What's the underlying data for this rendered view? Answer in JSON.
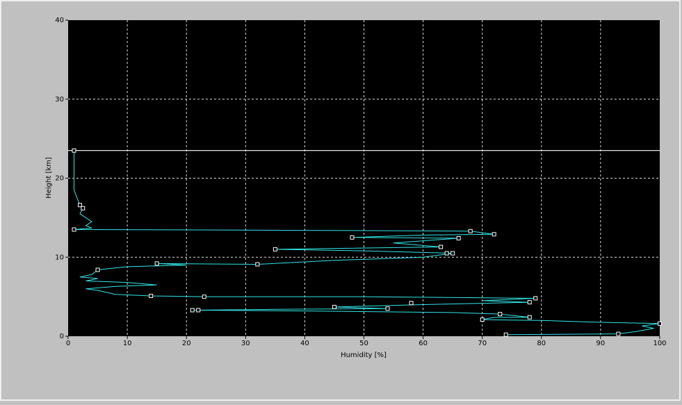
{
  "chart_data": {
    "type": "line",
    "x_label": "Humidity [%]",
    "y_label": "Height [km]",
    "xlim": [
      0,
      100
    ],
    "xticks": [
      0,
      10,
      20,
      30,
      40,
      50,
      60,
      70,
      80,
      90,
      100
    ],
    "ylim": [
      0,
      40
    ],
    "yticks": [
      0,
      10,
      20,
      30,
      40
    ],
    "grid": true,
    "reference_line": {
      "value": 23.5,
      "color": "#ffffff"
    },
    "series": [
      {
        "color": "#33e6e6",
        "x": [
          74,
          93,
          96,
          99,
          97,
          100,
          88,
          80,
          70,
          72,
          78,
          73,
          65,
          40,
          22,
          21,
          35,
          54,
          45,
          60,
          78,
          70,
          79,
          50,
          23,
          14,
          8,
          5,
          3,
          8,
          15,
          10,
          3,
          5,
          2,
          4,
          5,
          10,
          20,
          15,
          32,
          45,
          60,
          65,
          50,
          35,
          63,
          55,
          66,
          48,
          60,
          72,
          68,
          40,
          1,
          4,
          3,
          4,
          3,
          2,
          2.5,
          2,
          1.5,
          1,
          1,
          1
        ],
        "values": [
          0.2,
          0.3,
          0.6,
          1.0,
          1.3,
          1.6,
          1.8,
          2.0,
          2.1,
          2.4,
          2.4,
          2.8,
          3.0,
          3.2,
          3.3,
          3.3,
          3.4,
          3.5,
          3.7,
          4.0,
          4.3,
          4.5,
          4.8,
          5.0,
          5.0,
          5.1,
          5.3,
          5.8,
          6.0,
          6.3,
          6.5,
          6.8,
          7.0,
          7.3,
          7.5,
          7.8,
          8.4,
          8.8,
          9.0,
          9.2,
          9.1,
          9.6,
          10.0,
          10.5,
          10.8,
          11.0,
          11.3,
          11.8,
          12.4,
          12.5,
          12.8,
          12.9,
          13.3,
          13.4,
          13.5,
          13.7,
          14.0,
          14.5,
          15.0,
          15.5,
          16.2,
          16.6,
          17.5,
          18.5,
          20.0,
          23.5
        ]
      },
      {
        "color": "#ffffff",
        "marker": "square",
        "x": [
          1,
          2,
          2.5,
          1,
          68,
          72,
          48,
          66,
          63,
          35,
          64,
          65,
          32,
          15,
          5,
          14,
          23,
          79,
          78,
          58,
          45,
          54,
          21,
          22,
          73,
          78,
          70,
          100,
          93,
          74
        ],
        "values": [
          23.5,
          16.6,
          16.2,
          13.5,
          13.3,
          12.9,
          12.5,
          12.4,
          11.3,
          11.0,
          10.5,
          10.5,
          9.1,
          9.2,
          8.4,
          5.1,
          5.0,
          4.8,
          4.3,
          4.2,
          3.7,
          3.5,
          3.3,
          3.3,
          2.8,
          2.4,
          2.1,
          1.6,
          0.3,
          0.2
        ]
      }
    ]
  }
}
